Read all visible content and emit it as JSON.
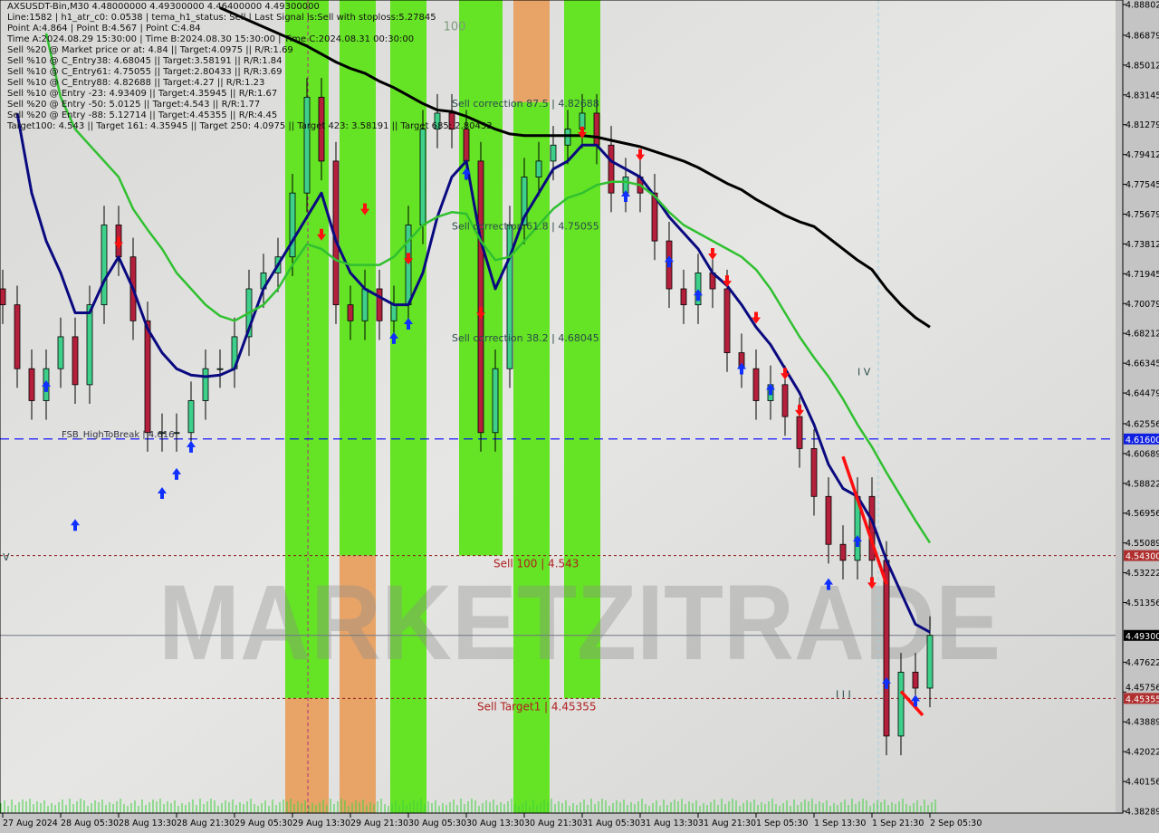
{
  "window": {
    "header": "AXSUSDT-Bin,M30  4.48000000 4.49300000 4.46400000 4.49300000"
  },
  "info_lines": [
    "Line:1582 | h1_atr_c0: 0.0538 | tema_h1_status: Sell | Last Signal is:Sell with stoploss:5.27845",
    "Point A:4.864 | Point B:4.567 | Point C:4.84",
    "Time A:2024.08.29 15:30:00 | Time B:2024.08.30 15:30:00 | Time C:2024.08.31 00:30:00",
    "Sell %20 @ Market price or at: 4.84 || Target:4.0975 || R/R:1.69",
    "Sell %10 @ C_Entry38: 4.68045 || Target:3.58191 || R/R:1.84",
    "Sell %10 @ C_Entry61: 4.75055 || Target:2.80433 || R/R:3.69",
    "Sell %10 @ C_Entry88: 4.82688 || Target:4.27 || R/R:1.23",
    "Sell %10 @ Entry -23: 4.93409 || Target:4.35945 || R/R:1.67",
    "Sell %20 @ Entry -50: 5.0125 || Target:4.543 || R/R:1.77",
    "Sell %20 @ Entry -88: 5.12714 || Target:4.45355 || R/R:4.45",
    "Target100: 4.543 || Target 161: 4.35945 || Target 250: 4.0975 || Target 423: 3.58191 || Target 685: 2.80433"
  ],
  "watermark": "MARKETZITRADE",
  "colors": {
    "bull": "#3ed08a",
    "bear": "#b4203c",
    "navy_ma": "#0a0a80",
    "green_ma": "#30c030",
    "black_ma": "#000000",
    "zone_green": "#5ee31a",
    "zone_orange": "#e8a060",
    "blue_line": "#0000ff",
    "target_line": "#8b1a1a",
    "price_line": "#707880"
  },
  "chart_data": {
    "type": "candlestick",
    "symbol": "AXSUSDT-Bin",
    "timeframe": "M30",
    "ylim": [
      4.38289,
      4.88802
    ],
    "y_ticks": [
      "4.88802",
      "4.86879",
      "4.85012",
      "4.83145",
      "4.81279",
      "4.79412",
      "4.77545",
      "4.75679",
      "4.73812",
      "4.71945",
      "4.70079",
      "4.68212",
      "4.66345",
      "4.64479",
      "4.62556",
      "4.60689",
      "4.58822",
      "4.56956",
      "4.55089",
      "4.53222",
      "4.51356",
      "4.47622",
      "4.45756",
      "4.43889",
      "4.42022",
      "4.40156",
      "4.38289"
    ],
    "x_ticks": [
      {
        "t": "2024-08-27 21:30",
        "label": "27 Aug 2024"
      },
      {
        "t": "2024-08-28 05:30",
        "label": "28 Aug 05:30"
      },
      {
        "t": "2024-08-28 13:30",
        "label": "28 Aug 13:30"
      },
      {
        "t": "2024-08-28 21:30",
        "label": "28 Aug 21:30"
      },
      {
        "t": "2024-08-29 05:30",
        "label": "29 Aug 05:30"
      },
      {
        "t": "2024-08-29 13:30",
        "label": "29 Aug 13:30"
      },
      {
        "t": "2024-08-29 21:30",
        "label": "29 Aug 21:30"
      },
      {
        "t": "2024-08-30 05:30",
        "label": "30 Aug 05:30"
      },
      {
        "t": "2024-08-30 13:30",
        "label": "30 Aug 13:30"
      },
      {
        "t": "2024-08-30 21:30",
        "label": "30 Aug 21:30"
      },
      {
        "t": "2024-08-31 05:30",
        "label": "31 Aug 05:30"
      },
      {
        "t": "2024-08-31 13:30",
        "label": "31 Aug 13:30"
      },
      {
        "t": "2024-08-31 21:30",
        "label": "31 Aug 21:30"
      },
      {
        "t": "2024-09-01 05:30",
        "label": "1 Sep 05:30"
      },
      {
        "t": "2024-09-01 13:30",
        "label": "1 Sep 13:30"
      },
      {
        "t": "2024-09-01 21:30",
        "label": "1 Sep 21:30"
      },
      {
        "t": "2024-09-02 05:30",
        "label": "2 Sep 05:30"
      }
    ],
    "times": [
      "2024-08-27 21:30",
      "2024-08-27 23:30",
      "2024-08-28 01:30",
      "2024-08-28 03:30",
      "2024-08-28 05:30",
      "2024-08-28 07:30",
      "2024-08-28 09:30",
      "2024-08-28 11:30",
      "2024-08-28 13:30",
      "2024-08-28 15:30",
      "2024-08-28 17:30",
      "2024-08-28 19:30",
      "2024-08-28 21:30",
      "2024-08-28 23:30",
      "2024-08-29 01:30",
      "2024-08-29 03:30",
      "2024-08-29 05:30",
      "2024-08-29 07:30",
      "2024-08-29 09:30",
      "2024-08-29 11:30",
      "2024-08-29 13:30",
      "2024-08-29 15:30",
      "2024-08-29 17:30",
      "2024-08-29 19:30",
      "2024-08-29 21:30",
      "2024-08-29 23:30",
      "2024-08-30 01:30",
      "2024-08-30 03:30",
      "2024-08-30 05:30",
      "2024-08-30 07:30",
      "2024-08-30 09:30",
      "2024-08-30 11:30",
      "2024-08-30 13:30",
      "2024-08-30 15:30",
      "2024-08-30 17:30",
      "2024-08-30 19:30",
      "2024-08-30 21:30",
      "2024-08-30 23:30",
      "2024-08-31 01:30",
      "2024-08-31 03:30",
      "2024-08-31 05:30",
      "2024-08-31 07:30",
      "2024-08-31 09:30",
      "2024-08-31 11:30",
      "2024-08-31 13:30",
      "2024-08-31 15:30",
      "2024-08-31 17:30",
      "2024-08-31 19:30",
      "2024-08-31 21:30",
      "2024-08-31 23:30",
      "2024-09-01 01:30",
      "2024-09-01 03:30",
      "2024-09-01 05:30",
      "2024-09-01 07:30",
      "2024-09-01 09:30",
      "2024-09-01 11:30",
      "2024-09-01 13:30",
      "2024-09-01 15:30",
      "2024-09-01 17:30",
      "2024-09-01 19:30",
      "2024-09-01 21:30",
      "2024-09-01 23:30",
      "2024-09-02 01:30",
      "2024-09-02 03:30",
      "2024-09-02 05:30"
    ],
    "close": [
      4.7,
      4.66,
      4.64,
      4.66,
      4.68,
      4.65,
      4.7,
      4.75,
      4.73,
      4.69,
      4.62,
      4.62,
      4.62,
      4.64,
      4.66,
      4.66,
      4.68,
      4.71,
      4.72,
      4.73,
      4.77,
      4.83,
      4.79,
      4.7,
      4.69,
      4.71,
      4.69,
      4.7,
      4.75,
      4.81,
      4.82,
      4.81,
      4.79,
      4.62,
      4.66,
      4.75,
      4.78,
      4.79,
      4.8,
      4.81,
      4.82,
      4.8,
      4.77,
      4.78,
      4.77,
      4.74,
      4.71,
      4.7,
      4.72,
      4.71,
      4.67,
      4.66,
      4.64,
      4.65,
      4.63,
      4.61,
      4.58,
      4.55,
      4.54,
      4.58,
      4.54,
      4.43,
      4.47,
      4.46,
      4.493
    ],
    "series": [
      {
        "key": "black_ma",
        "values": [
          null,
          null,
          null,
          null,
          null,
          null,
          null,
          null,
          null,
          null,
          null,
          null,
          null,
          null,
          null,
          4.886,
          4.882,
          4.878,
          4.874,
          4.87,
          4.866,
          4.862,
          4.857,
          4.852,
          4.848,
          4.845,
          4.84,
          4.836,
          4.831,
          4.826,
          4.822,
          4.821,
          4.818,
          4.814,
          4.81,
          4.807,
          4.806,
          4.806,
          4.806,
          4.806,
          4.806,
          4.805,
          4.803,
          4.801,
          4.799,
          4.796,
          4.793,
          4.79,
          4.786,
          4.781,
          4.776,
          4.772,
          4.766,
          4.761,
          4.756,
          4.752,
          4.749,
          4.742,
          4.735,
          4.728,
          4.722,
          4.71,
          4.7,
          4.692,
          4.686
        ]
      },
      {
        "key": "navy_ma",
        "values": [
          null,
          4.82,
          4.77,
          4.74,
          4.72,
          4.695,
          4.695,
          4.715,
          4.73,
          4.71,
          4.685,
          4.67,
          4.66,
          4.656,
          4.655,
          4.656,
          4.66,
          4.685,
          4.71,
          4.725,
          4.74,
          4.755,
          4.77,
          4.74,
          4.72,
          4.71,
          4.705,
          4.7,
          4.7,
          4.72,
          4.755,
          4.78,
          4.79,
          4.74,
          4.71,
          4.73,
          4.755,
          4.77,
          4.785,
          4.79,
          4.8,
          4.8,
          4.79,
          4.785,
          4.78,
          4.768,
          4.755,
          4.745,
          4.735,
          4.72,
          4.712,
          4.7,
          4.686,
          4.675,
          4.66,
          4.645,
          4.625,
          4.6,
          4.585,
          4.58,
          4.565,
          4.54,
          4.52,
          4.5,
          4.495
        ]
      },
      {
        "key": "green_ma",
        "values": [
          null,
          null,
          null,
          4.87,
          4.83,
          4.81,
          4.8,
          4.79,
          4.78,
          4.76,
          4.747,
          4.735,
          4.72,
          4.71,
          4.7,
          4.693,
          4.69,
          4.695,
          4.7,
          4.71,
          4.725,
          4.738,
          4.735,
          4.728,
          4.725,
          4.725,
          4.725,
          4.73,
          4.74,
          4.75,
          4.755,
          4.758,
          4.757,
          4.74,
          4.728,
          4.73,
          4.74,
          4.75,
          4.76,
          4.767,
          4.77,
          4.775,
          4.777,
          4.777,
          4.775,
          4.768,
          4.758,
          4.75,
          4.745,
          4.74,
          4.735,
          4.73,
          4.722,
          4.71,
          4.695,
          4.68,
          4.667,
          4.655,
          4.641,
          4.625,
          4.611,
          4.595,
          4.58,
          4.565,
          4.551
        ]
      }
    ],
    "zones": [
      {
        "start": "2024-08-29 12:30",
        "end": "2024-08-29 18:30",
        "segments": [
          {
            "top": 4.88802,
            "bottom": 4.45355,
            "color": "green"
          },
          {
            "top": 4.45355,
            "bottom": 4.38289,
            "color": "orange"
          }
        ]
      },
      {
        "start": "2024-08-29 20:00",
        "end": "2024-08-30 01:00",
        "segments": [
          {
            "top": 4.88802,
            "bottom": 4.543,
            "color": "green"
          },
          {
            "top": 4.543,
            "bottom": 4.38289,
            "color": "orange"
          }
        ]
      },
      {
        "start": "2024-08-30 03:00",
        "end": "2024-08-30 08:00",
        "segments": [
          {
            "top": 4.88802,
            "bottom": 4.38289,
            "color": "green"
          }
        ]
      },
      {
        "start": "2024-08-30 12:30",
        "end": "2024-08-30 18:30",
        "segments": [
          {
            "top": 4.88802,
            "bottom": 4.543,
            "color": "green"
          }
        ]
      },
      {
        "start": "2024-08-30 20:00",
        "end": "2024-08-31 01:00",
        "segments": [
          {
            "top": 4.88802,
            "bottom": 4.82688,
            "color": "orange"
          },
          {
            "top": 4.82688,
            "bottom": 4.38289,
            "color": "green"
          }
        ]
      },
      {
        "start": "2024-08-31 03:00",
        "end": "2024-08-31 08:00",
        "segments": [
          {
            "top": 4.88802,
            "bottom": 4.45355,
            "color": "green"
          }
        ]
      }
    ],
    "hlines": [
      {
        "price": 4.616,
        "style": "blue-dash",
        "label": "FSB_HighToBreak | 4.616",
        "tag": "4.61600"
      },
      {
        "price": 4.543,
        "style": "target-dash",
        "label": "Sell 100 | 4.543",
        "tag": "4.54300"
      },
      {
        "price": 4.493,
        "style": "price",
        "label": "",
        "tag": "4.49300"
      },
      {
        "price": 4.45355,
        "style": "target-dash",
        "label": "Sell Target1 | 4.45355",
        "tag": "4.45355"
      }
    ],
    "annotations": [
      {
        "t": "2024-08-30 11:30",
        "price": 4.824,
        "text": "Sell correction 87.5 | 4.82688"
      },
      {
        "t": "2024-08-30 11:30",
        "price": 4.747,
        "text": "Sell correction 61.8 | 4.75055"
      },
      {
        "t": "2024-08-30 11:30",
        "price": 4.677,
        "text": "Sell correction 38.2 | 4.68045"
      },
      {
        "t": "2024-08-30 02:30",
        "price": 4.872,
        "text": "100"
      },
      {
        "t": "2024-09-01 19:30",
        "price": 4.656,
        "text": "I V"
      },
      {
        "t": "2024-09-01 16:30",
        "price": 4.454,
        "text": "I I I"
      },
      {
        "t": "2024-08-27 21:30",
        "price": 4.54,
        "text": "V"
      }
    ],
    "signals": {
      "sell": [
        {
          "t": "2024-08-28 13:30",
          "price": 4.738
        },
        {
          "t": "2024-08-29 17:30",
          "price": 4.743
        },
        {
          "t": "2024-08-29 23:30",
          "price": 4.759
        },
        {
          "t": "2024-08-30 05:30",
          "price": 4.728
        },
        {
          "t": "2024-08-30 15:30",
          "price": 4.694
        },
        {
          "t": "2024-08-31 05:30",
          "price": 4.807
        },
        {
          "t": "2024-08-31 13:30",
          "price": 4.793
        },
        {
          "t": "2024-08-31 23:30",
          "price": 4.731
        },
        {
          "t": "2024-09-01 01:30",
          "price": 4.714
        },
        {
          "t": "2024-09-01 05:30",
          "price": 4.691
        },
        {
          "t": "2024-09-01 09:30",
          "price": 4.656
        },
        {
          "t": "2024-09-01 11:30",
          "price": 4.633
        },
        {
          "t": "2024-09-01 21:30",
          "price": 4.525
        }
      ],
      "buy": [
        {
          "t": "2024-08-28 03:30",
          "price": 4.65
        },
        {
          "t": "2024-08-28 07:30",
          "price": 4.563
        },
        {
          "t": "2024-08-28 19:30",
          "price": 4.583
        },
        {
          "t": "2024-08-28 21:30",
          "price": 4.595
        },
        {
          "t": "2024-08-28 23:30",
          "price": 4.612
        },
        {
          "t": "2024-08-30 03:30",
          "price": 4.68
        },
        {
          "t": "2024-08-30 05:30",
          "price": 4.689
        },
        {
          "t": "2024-08-30 13:30",
          "price": 4.783
        },
        {
          "t": "2024-08-31 11:30",
          "price": 4.769
        },
        {
          "t": "2024-08-31 17:30",
          "price": 4.728
        },
        {
          "t": "2024-08-31 21:30",
          "price": 4.707
        },
        {
          "t": "2024-09-01 03:30",
          "price": 4.661
        },
        {
          "t": "2024-09-01 07:30",
          "price": 4.648
        },
        {
          "t": "2024-09-01 15:30",
          "price": 4.526
        },
        {
          "t": "2024-09-01 19:30",
          "price": 4.553
        },
        {
          "t": "2024-09-01 23:30",
          "price": 4.464
        },
        {
          "t": "2024-09-02 03:30",
          "price": 4.453
        }
      ]
    },
    "trendlines": [
      {
        "from": {
          "t": "2024-09-01 17:30",
          "price": 4.605
        },
        "to": {
          "t": "2024-09-01 23:30",
          "price": 4.525
        }
      },
      {
        "from": {
          "t": "2024-09-02 01:30",
          "price": 4.458
        },
        "to": {
          "t": "2024-09-02 04:30",
          "price": 4.443
        }
      }
    ]
  }
}
